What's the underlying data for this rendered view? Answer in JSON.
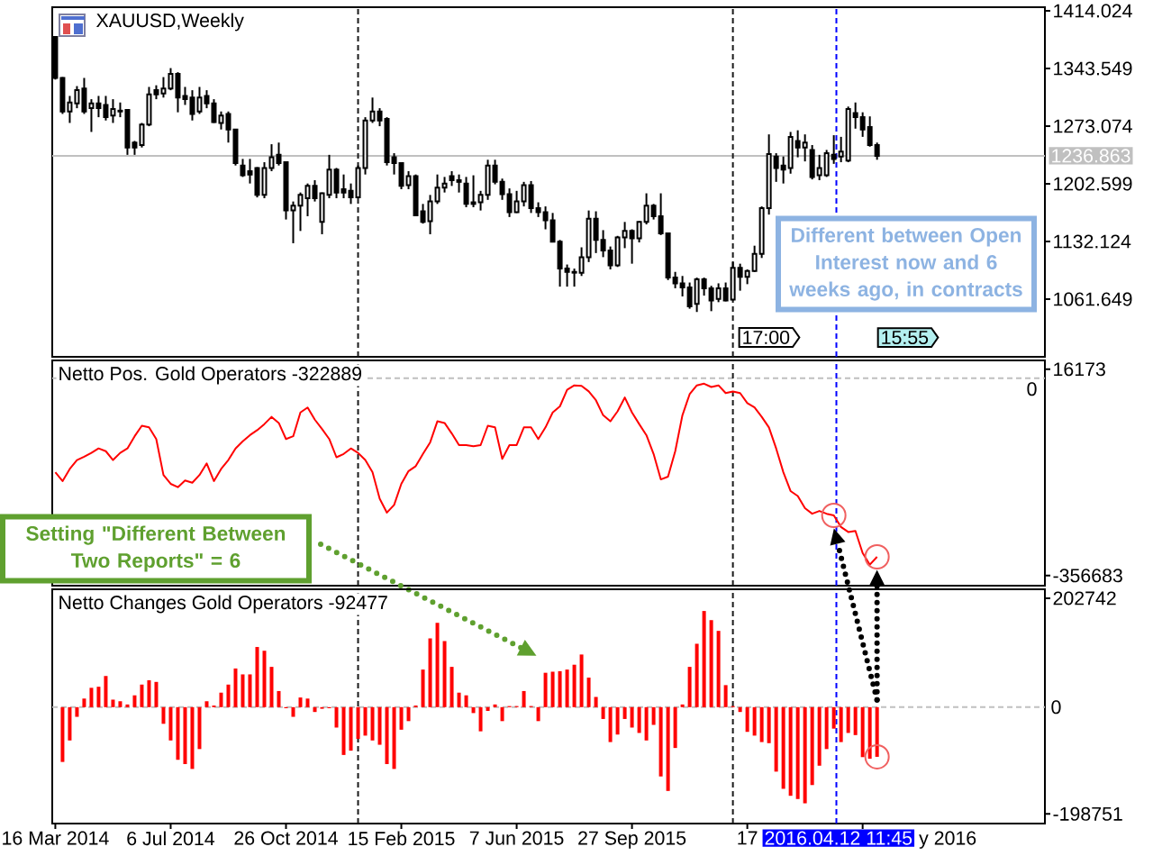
{
  "chart_data": [
    {
      "type": "candlestick",
      "title": "XAUUSD,Weekly",
      "color": "#000000",
      "x": [
        "2014-03-16",
        "2014-03-23",
        "2014-03-30",
        "2014-04-06",
        "2014-04-13",
        "2014-04-20",
        "2014-04-27",
        "2014-05-04",
        "2014-05-11",
        "2014-05-18",
        "2014-05-25",
        "2014-06-01",
        "2014-06-08",
        "2014-06-15",
        "2014-06-22",
        "2014-06-29",
        "2014-07-06",
        "2014-07-13",
        "2014-07-20",
        "2014-07-27",
        "2014-08-03",
        "2014-08-10",
        "2014-08-17",
        "2014-08-24",
        "2014-08-31",
        "2014-09-07",
        "2014-09-14",
        "2014-09-21",
        "2014-09-28",
        "2014-10-05",
        "2014-10-12",
        "2014-10-19",
        "2014-10-26",
        "2014-11-02",
        "2014-11-09",
        "2014-11-16",
        "2014-11-23",
        "2014-11-30",
        "2014-12-07",
        "2014-12-14",
        "2014-12-21",
        "2014-12-28",
        "2015-01-04",
        "2015-01-11",
        "2015-01-18",
        "2015-01-25",
        "2015-02-01",
        "2015-02-08",
        "2015-02-15",
        "2015-02-22",
        "2015-03-01",
        "2015-03-08",
        "2015-03-15",
        "2015-03-22",
        "2015-03-29",
        "2015-04-05",
        "2015-04-12",
        "2015-04-19",
        "2015-04-26",
        "2015-05-03",
        "2015-05-10",
        "2015-05-17",
        "2015-05-24",
        "2015-05-31",
        "2015-06-07",
        "2015-06-14",
        "2015-06-21",
        "2015-06-28",
        "2015-07-05",
        "2015-07-12",
        "2015-07-19",
        "2015-07-26",
        "2015-08-02",
        "2015-08-09",
        "2015-08-16",
        "2015-08-23",
        "2015-08-30",
        "2015-09-06",
        "2015-09-13",
        "2015-09-20",
        "2015-09-27",
        "2015-10-04",
        "2015-10-11",
        "2015-10-18",
        "2015-10-25",
        "2015-11-01",
        "2015-11-08",
        "2015-11-15",
        "2015-11-22",
        "2015-11-29",
        "2015-12-06",
        "2015-12-13",
        "2015-12-20",
        "2015-12-27",
        "2016-01-03",
        "2016-01-10",
        "2016-01-17",
        "2016-01-24",
        "2016-01-31",
        "2016-02-07",
        "2016-02-14",
        "2016-02-21",
        "2016-02-28",
        "2016-03-06",
        "2016-03-13",
        "2016-03-20",
        "2016-03-27",
        "2016-04-03",
        "2016-04-10",
        "2016-04-17",
        "2016-04-24",
        "2016-05-01",
        "2016-05-08",
        "2016-05-15",
        "2016-05-22"
      ],
      "ohlc": [
        [
          1382,
          1383,
          1330,
          1332
        ],
        [
          1332,
          1333,
          1288,
          1291
        ],
        [
          1291,
          1310,
          1277,
          1302
        ],
        [
          1301,
          1322,
          1295,
          1317
        ],
        [
          1319,
          1332,
          1288,
          1291
        ],
        [
          1295,
          1306,
          1266,
          1301
        ],
        [
          1301,
          1310,
          1284,
          1295
        ],
        [
          1299,
          1310,
          1280,
          1284
        ],
        [
          1286,
          1306,
          1277,
          1294
        ],
        [
          1292,
          1302,
          1284,
          1291
        ],
        [
          1293,
          1293,
          1238,
          1247
        ],
        [
          1253,
          1255,
          1238,
          1247
        ],
        [
          1250,
          1277,
          1247,
          1275
        ],
        [
          1275,
          1321,
          1273,
          1312
        ],
        [
          1317,
          1323,
          1306,
          1312
        ],
        [
          1313,
          1333,
          1308,
          1319
        ],
        [
          1319,
          1344,
          1317,
          1337
        ],
        [
          1337,
          1339,
          1290,
          1308
        ],
        [
          1310,
          1321,
          1299,
          1306
        ],
        [
          1308,
          1317,
          1280,
          1288
        ],
        [
          1291,
          1321,
          1288,
          1308
        ],
        [
          1310,
          1317,
          1295,
          1301
        ],
        [
          1301,
          1306,
          1277,
          1278
        ],
        [
          1277,
          1291,
          1269,
          1286
        ],
        [
          1288,
          1291,
          1253,
          1269
        ],
        [
          1269,
          1269,
          1225,
          1228
        ],
        [
          1225,
          1233,
          1211,
          1213
        ],
        [
          1218,
          1233,
          1203,
          1214
        ],
        [
          1222,
          1223,
          1186,
          1189
        ],
        [
          1189,
          1229,
          1185,
          1222
        ],
        [
          1222,
          1251,
          1218,
          1235
        ],
        [
          1238,
          1253,
          1225,
          1228
        ],
        [
          1229,
          1230,
          1159,
          1170
        ],
        [
          1170,
          1181,
          1130,
          1176
        ],
        [
          1176,
          1192,
          1145,
          1189
        ],
        [
          1185,
          1203,
          1163,
          1200
        ],
        [
          1200,
          1207,
          1181,
          1185
        ],
        [
          1156,
          1192,
          1141,
          1191
        ],
        [
          1189,
          1238,
          1185,
          1220
        ],
        [
          1220,
          1222,
          1185,
          1192
        ],
        [
          1196,
          1214,
          1185,
          1192
        ],
        [
          1194,
          1203,
          1178,
          1186
        ],
        [
          1186,
          1225,
          1185,
          1222
        ],
        [
          1222,
          1284,
          1214,
          1280
        ],
        [
          1280,
          1308,
          1277,
          1291
        ],
        [
          1291,
          1295,
          1273,
          1280
        ],
        [
          1282,
          1284,
          1225,
          1229
        ],
        [
          1235,
          1240,
          1214,
          1228
        ],
        [
          1228,
          1229,
          1196,
          1200
        ],
        [
          1201,
          1218,
          1196,
          1212
        ],
        [
          1212,
          1214,
          1163,
          1164
        ],
        [
          1169,
          1178,
          1154,
          1156
        ],
        [
          1157,
          1189,
          1141,
          1181
        ],
        [
          1181,
          1214,
          1178,
          1198
        ],
        [
          1198,
          1211,
          1192,
          1203
        ],
        [
          1212,
          1218,
          1200,
          1207
        ],
        [
          1207,
          1214,
          1192,
          1205
        ],
        [
          1203,
          1211,
          1174,
          1178
        ],
        [
          1178,
          1213,
          1174,
          1180
        ],
        [
          1180,
          1194,
          1170,
          1189
        ],
        [
          1189,
          1232,
          1183,
          1225
        ],
        [
          1225,
          1232,
          1202,
          1205
        ],
        [
          1205,
          1209,
          1183,
          1190
        ],
        [
          1190,
          1197,
          1162,
          1168
        ],
        [
          1168,
          1194,
          1167,
          1181
        ],
        [
          1181,
          1205,
          1175,
          1201
        ],
        [
          1201,
          1206,
          1167,
          1173
        ],
        [
          1173,
          1180,
          1162,
          1168
        ],
        [
          1168,
          1175,
          1147,
          1158
        ],
        [
          1158,
          1167,
          1131,
          1132
        ],
        [
          1132,
          1134,
          1077,
          1099
        ],
        [
          1099,
          1104,
          1077,
          1095
        ],
        [
          1095,
          1099,
          1077,
          1094
        ],
        [
          1094,
          1125,
          1090,
          1113
        ],
        [
          1113,
          1170,
          1107,
          1160
        ],
        [
          1160,
          1169,
          1118,
          1134
        ],
        [
          1134,
          1146,
          1113,
          1121
        ],
        [
          1121,
          1126,
          1098,
          1103
        ],
        [
          1103,
          1139,
          1101,
          1137
        ],
        [
          1137,
          1156,
          1124,
          1145
        ],
        [
          1145,
          1147,
          1105,
          1136
        ],
        [
          1136,
          1157,
          1131,
          1156
        ],
        [
          1156,
          1191,
          1153,
          1176
        ],
        [
          1176,
          1178,
          1159,
          1163
        ],
        [
          1163,
          1191,
          1140,
          1142
        ],
        [
          1142,
          1142,
          1085,
          1088
        ],
        [
          1088,
          1095,
          1075,
          1081
        ],
        [
          1081,
          1090,
          1065,
          1076
        ],
        [
          1076,
          1082,
          1050,
          1053
        ],
        [
          1056,
          1088,
          1046,
          1086
        ],
        [
          1086,
          1088,
          1066,
          1075
        ],
        [
          1075,
          1078,
          1047,
          1060
        ],
        [
          1062,
          1081,
          1058,
          1075
        ],
        [
          1075,
          1082,
          1059,
          1060
        ],
        [
          1061,
          1107,
          1060,
          1100
        ],
        [
          1100,
          1105,
          1072,
          1089
        ],
        [
          1089,
          1098,
          1080,
          1096
        ],
        [
          1096,
          1127,
          1095,
          1117
        ],
        [
          1117,
          1175,
          1112,
          1173
        ],
        [
          1173,
          1263,
          1165,
          1239
        ],
        [
          1236,
          1240,
          1205,
          1222
        ],
        [
          1225,
          1236,
          1203,
          1220
        ],
        [
          1222,
          1266,
          1215,
          1260
        ],
        [
          1255,
          1268,
          1235,
          1247
        ],
        [
          1247,
          1263,
          1230,
          1253
        ],
        [
          1244,
          1250,
          1208,
          1211
        ],
        [
          1213,
          1238,
          1207,
          1222
        ],
        [
          1213,
          1244,
          1211,
          1240
        ],
        [
          1238,
          1262,
          1227,
          1233
        ],
        [
          1236,
          1260,
          1229,
          1242
        ],
        [
          1231,
          1297,
          1229,
          1294
        ],
        [
          1289,
          1302,
          1270,
          1284
        ],
        [
          1284,
          1290,
          1260,
          1269
        ],
        [
          1272,
          1285,
          1248,
          1250
        ],
        [
          1250,
          1253,
          1232,
          1236.863
        ]
      ],
      "xlim": [
        "2014-03-13",
        "2016-11-01"
      ],
      "ylim": [
        991.2,
        1418.4
      ],
      "yticks": [
        1061.649,
        1132.124,
        1202.599,
        1273.074,
        1343.549,
        1414.024
      ],
      "tick_labels": "y",
      "ref_lines": [
        {
          "axis": "y",
          "value": 1236.863,
          "label": "1236.863",
          "color": "#c0c0c0"
        },
        {
          "axis": "x",
          "value": "2015-01-04",
          "color": "#1a1a1a",
          "line_style": "dashed"
        },
        {
          "axis": "x",
          "value": "2016-01-03",
          "color": "#1a1a1a",
          "line_style": "dashed"
        },
        {
          "axis": "x",
          "value": "2016-04-12T11:45",
          "color": "#0000ff",
          "line_style": "dashed"
        }
      ],
      "annotations": [
        "Different between Open Interest now and 6 weeks ago, in contracts",
        "17:00",
        "15:55"
      ]
    },
    {
      "type": "line",
      "title": "Netto Pos. Gold Operators -322889",
      "color": "#ff0000",
      "x": [
        "2014-03-16",
        "2014-03-23",
        "2014-03-30",
        "2014-04-06",
        "2014-04-13",
        "2014-04-20",
        "2014-04-27",
        "2014-05-04",
        "2014-05-11",
        "2014-05-18",
        "2014-05-25",
        "2014-06-01",
        "2014-06-08",
        "2014-06-15",
        "2014-06-22",
        "2014-06-29",
        "2014-07-06",
        "2014-07-13",
        "2014-07-20",
        "2014-07-27",
        "2014-08-03",
        "2014-08-10",
        "2014-08-17",
        "2014-08-24",
        "2014-08-31",
        "2014-09-07",
        "2014-09-14",
        "2014-09-21",
        "2014-09-28",
        "2014-10-05",
        "2014-10-12",
        "2014-10-19",
        "2014-10-26",
        "2014-11-02",
        "2014-11-09",
        "2014-11-16",
        "2014-11-23",
        "2014-11-30",
        "2014-12-07",
        "2014-12-14",
        "2014-12-21",
        "2014-12-28",
        "2015-01-04",
        "2015-01-11",
        "2015-01-18",
        "2015-01-25",
        "2015-02-01",
        "2015-02-08",
        "2015-02-15",
        "2015-02-22",
        "2015-03-01",
        "2015-03-08",
        "2015-03-15",
        "2015-03-22",
        "2015-03-29",
        "2015-04-05",
        "2015-04-12",
        "2015-04-19",
        "2015-04-26",
        "2015-05-03",
        "2015-05-10",
        "2015-05-17",
        "2015-05-24",
        "2015-05-31",
        "2015-06-07",
        "2015-06-14",
        "2015-06-21",
        "2015-06-28",
        "2015-07-05",
        "2015-07-12",
        "2015-07-19",
        "2015-07-26",
        "2015-08-02",
        "2015-08-09",
        "2015-08-16",
        "2015-08-23",
        "2015-08-30",
        "2015-09-06",
        "2015-09-13",
        "2015-09-20",
        "2015-09-27",
        "2015-10-04",
        "2015-10-11",
        "2015-10-18",
        "2015-10-25",
        "2015-11-01",
        "2015-11-08",
        "2015-11-15",
        "2015-11-22",
        "2015-11-29",
        "2015-12-06",
        "2015-12-13",
        "2015-12-20",
        "2015-12-27",
        "2016-01-03",
        "2016-01-10",
        "2016-01-17",
        "2016-01-24",
        "2016-01-31",
        "2016-02-07",
        "2016-02-14",
        "2016-02-21",
        "2016-02-28",
        "2016-03-06",
        "2016-03-13",
        "2016-03-20",
        "2016-03-27",
        "2016-04-03",
        "2016-04-10",
        "2016-04-17",
        "2016-04-24",
        "2016-05-01",
        "2016-05-08",
        "2016-05-15",
        "2016-05-22"
      ],
      "values": [
        -170000,
        -186000,
        -164000,
        -148000,
        -142000,
        -135000,
        -127000,
        -132000,
        -148000,
        -135000,
        -127000,
        -105000,
        -86000,
        -89000,
        -110000,
        -175000,
        -191000,
        -197000,
        -185000,
        -189000,
        -175000,
        -154000,
        -186000,
        -164000,
        -148000,
        -127000,
        -114000,
        -103000,
        -94000,
        -83000,
        -70000,
        -81000,
        -110000,
        -105000,
        -62000,
        -53000,
        -75000,
        -92000,
        -110000,
        -143000,
        -137000,
        -127000,
        -135000,
        -148000,
        -170000,
        -218000,
        -243000,
        -229000,
        -191000,
        -168000,
        -159000,
        -137000,
        -116000,
        -78000,
        -81000,
        -100000,
        -121000,
        -121000,
        -123000,
        -121000,
        -86000,
        -89000,
        -146000,
        -121000,
        -121000,
        -89000,
        -89000,
        -110000,
        -89000,
        -62000,
        -51000,
        -21000,
        -13000,
        -14000,
        -24000,
        -40000,
        -67000,
        -78000,
        -60000,
        -35000,
        -62000,
        -83000,
        -103000,
        -137000,
        -183000,
        -178000,
        -132000,
        -67000,
        -29000,
        -13000,
        -10000,
        -16000,
        -13000,
        -27000,
        -24000,
        -27000,
        -45000,
        -53000,
        -70000,
        -89000,
        -127000,
        -170000,
        -204000,
        -213000,
        -235000,
        -245000,
        -240000,
        -245000,
        -248000,
        -269000,
        -278000,
        -276000,
        -316000,
        -337000,
        -322889
      ],
      "xlim": [
        "2014-03-13",
        "2016-11-01"
      ],
      "ylim": [
        -375000,
        32000
      ],
      "yticks": [
        -356683,
        16173
      ],
      "tick_labels": "y",
      "ref_lines": [
        {
          "axis": "y",
          "value": 0,
          "label": "0",
          "color": "#c0c0c0",
          "line_style": "dashed"
        },
        {
          "axis": "x",
          "value": "2015-01-04",
          "color": "#1a1a1a",
          "line_style": "dashed"
        },
        {
          "axis": "x",
          "value": "2016-01-03",
          "color": "#1a1a1a",
          "line_style": "dashed"
        },
        {
          "axis": "x",
          "value": "2016-04-12T11:45",
          "color": "#0000ff",
          "line_style": "dashed"
        }
      ],
      "annotations": [
        "Setting \"Different Between Two Reports\" = 6"
      ]
    },
    {
      "type": "bar",
      "title": "Netto Changes Gold Operators -92477",
      "color": "#ff0000",
      "x": [
        "2014-03-23",
        "2014-03-30",
        "2014-04-06",
        "2014-04-13",
        "2014-04-20",
        "2014-04-27",
        "2014-05-04",
        "2014-05-11",
        "2014-05-18",
        "2014-05-25",
        "2014-06-01",
        "2014-06-08",
        "2014-06-15",
        "2014-06-22",
        "2014-06-29",
        "2014-07-06",
        "2014-07-13",
        "2014-07-20",
        "2014-07-27",
        "2014-08-03",
        "2014-08-10",
        "2014-08-17",
        "2014-08-24",
        "2014-08-31",
        "2014-09-07",
        "2014-09-14",
        "2014-09-21",
        "2014-09-28",
        "2014-10-05",
        "2014-10-12",
        "2014-10-19",
        "2014-10-26",
        "2014-11-02",
        "2014-11-09",
        "2014-11-16",
        "2014-11-23",
        "2014-11-30",
        "2014-12-07",
        "2014-12-14",
        "2014-12-21",
        "2014-12-28",
        "2015-01-04",
        "2015-01-11",
        "2015-01-18",
        "2015-01-25",
        "2015-02-01",
        "2015-02-08",
        "2015-02-15",
        "2015-02-22",
        "2015-03-01",
        "2015-03-08",
        "2015-03-15",
        "2015-03-22",
        "2015-03-29",
        "2015-04-05",
        "2015-04-12",
        "2015-04-19",
        "2015-04-26",
        "2015-05-03",
        "2015-05-10",
        "2015-05-17",
        "2015-05-24",
        "2015-05-31",
        "2015-06-07",
        "2015-06-14",
        "2015-06-21",
        "2015-06-28",
        "2015-07-05",
        "2015-07-12",
        "2015-07-19",
        "2015-07-26",
        "2015-08-02",
        "2015-08-09",
        "2015-08-16",
        "2015-08-23",
        "2015-08-30",
        "2015-09-06",
        "2015-09-13",
        "2015-09-20",
        "2015-09-27",
        "2015-10-04",
        "2015-10-11",
        "2015-10-18",
        "2015-10-25",
        "2015-11-01",
        "2015-11-08",
        "2015-11-15",
        "2015-11-22",
        "2015-11-29",
        "2015-12-06",
        "2015-12-13",
        "2015-12-20",
        "2015-12-27",
        "2016-01-03",
        "2016-01-10",
        "2016-01-17",
        "2016-01-24",
        "2016-01-31",
        "2016-02-07",
        "2016-02-14",
        "2016-02-21",
        "2016-02-28",
        "2016-03-06",
        "2016-03-13",
        "2016-03-20",
        "2016-03-27",
        "2016-04-03",
        "2016-04-10",
        "2016-04-17",
        "2016-04-24",
        "2016-05-01",
        "2016-05-08",
        "2016-05-15",
        "2016-05-22"
      ],
      "values": [
        -102000,
        -62000,
        -18000,
        16000,
        36000,
        38000,
        58000,
        14000,
        11000,
        5000,
        22000,
        42000,
        50000,
        47000,
        -31000,
        -62000,
        -98000,
        -106000,
        -115000,
        -78000,
        11000,
        3000,
        27000,
        42000,
        72000,
        61000,
        61000,
        112000,
        105000,
        75000,
        30000,
        -2000,
        -18000,
        18000,
        16000,
        -9000,
        -3000,
        -2000,
        -38000,
        -89000,
        -81000,
        -59000,
        -53000,
        -62000,
        -70000,
        -106000,
        -115000,
        -42000,
        -26000,
        3000,
        70000,
        128000,
        157000,
        123000,
        75000,
        27000,
        22000,
        -11000,
        -45000,
        -7000,
        5000,
        -26000,
        2000,
        2000,
        30000,
        2000,
        -26000,
        64000,
        66000,
        67000,
        70000,
        79000,
        98000,
        55000,
        19000,
        -22000,
        -65000,
        -51000,
        -22000,
        -38000,
        -48000,
        -62000,
        -33000,
        -129000,
        -156000,
        -76000,
        5000,
        75000,
        118000,
        179000,
        162000,
        142000,
        41000,
        2000,
        -9000,
        -46000,
        -53000,
        -65000,
        -67000,
        -120000,
        -152000,
        -165000,
        -171000,
        -179000,
        -145000,
        -109000,
        -78000,
        -40000,
        -65000,
        -48000,
        -52000,
        -93000,
        -96000,
        -92477
      ],
      "xlim": [
        "2014-03-13",
        "2016-11-01"
      ],
      "ylim": [
        -216700,
        219400
      ],
      "yticks": [
        -198751,
        202742
      ],
      "xticks": [
        {
          "value": "2014-03-16",
          "label": "16 Mar 2014"
        },
        {
          "value": "2014-07-06",
          "label": "6 Jul 2014"
        },
        {
          "value": "2014-10-26",
          "label": "26 Oct 2014"
        },
        {
          "value": "2015-02-15",
          "label": "15 Feb 2015"
        },
        {
          "value": "2015-06-07",
          "label": "7 Jun 2015"
        },
        {
          "value": "2015-09-27",
          "label": "27 Sep 2015"
        },
        {
          "value": "2016-01-17",
          "label": "17"
        },
        {
          "value": "2016-05-08",
          "label": null
        }
      ],
      "ref_lines": [
        {
          "axis": "y",
          "value": 0,
          "label": "0",
          "color": "#c0c0c0",
          "line_style": "dashed"
        },
        {
          "axis": "x",
          "value": "2015-01-04",
          "color": "#1a1a1a",
          "line_style": "dashed"
        },
        {
          "axis": "x",
          "value": "2016-01-03",
          "color": "#1a1a1a",
          "line_style": "dashed"
        },
        {
          "axis": "x",
          "value": "2016-04-12T11:45",
          "label": "2016.04.12 11:45",
          "color": "#0000ff",
          "line_style": "dashed"
        }
      ],
      "annotations": [
        "y 2016"
      ]
    }
  ]
}
